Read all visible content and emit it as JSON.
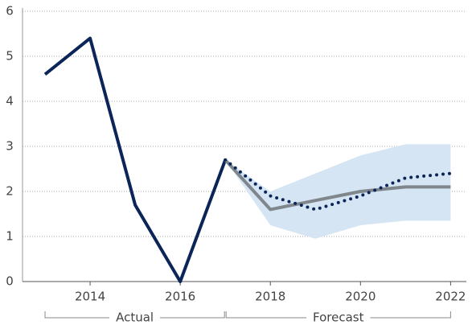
{
  "chart_data": {
    "type": "line",
    "series": [
      {
        "x": [
          2013,
          2014,
          2015,
          2016,
          2017
        ],
        "values": [
          4.6,
          5.4,
          1.7,
          0,
          2.7
        ],
        "color": "#0b2559",
        "style": "solid"
      },
      {
        "x": [
          2017,
          2018,
          2019,
          2020,
          2021,
          2022
        ],
        "values": [
          2.7,
          1.6,
          1.8,
          2.0,
          2.1,
          2.1
        ],
        "color": "#7f868c",
        "style": "solid"
      },
      {
        "x": [
          2017,
          2018,
          2019,
          2020,
          2021,
          2022
        ],
        "values": [
          2.7,
          1.9,
          1.6,
          1.9,
          2.3,
          2.4
        ],
        "color": "#0b2559",
        "style": "dotted"
      }
    ],
    "band": {
      "x": [
        2017,
        2018,
        2019,
        2020,
        2021,
        2022
      ],
      "upper": [
        2.7,
        2.0,
        2.4,
        2.8,
        3.05,
        3.05
      ],
      "lower": [
        2.7,
        1.25,
        0.95,
        1.25,
        1.35,
        1.35
      ],
      "color": "#d5e5f3"
    },
    "annotations": [
      "Actual",
      "Forecast"
    ],
    "xlim": [
      2012.5,
      2022.35
    ],
    "xticks": [
      2014,
      2016,
      2018,
      2020,
      2022
    ],
    "ylim": [
      0,
      6
    ],
    "yticks": [
      0,
      1,
      2,
      3,
      4,
      5,
      6
    ],
    "grid": true
  }
}
